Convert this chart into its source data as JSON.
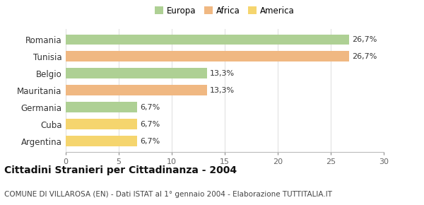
{
  "categories": [
    "Argentina",
    "Cuba",
    "Germania",
    "Mauritania",
    "Belgio",
    "Tunisia",
    "Romania"
  ],
  "values": [
    6.7,
    6.7,
    6.7,
    13.3,
    13.3,
    26.7,
    26.7
  ],
  "colors": [
    "#f5d56e",
    "#f5d56e",
    "#aed094",
    "#f0b882",
    "#aed094",
    "#f0b882",
    "#aed094"
  ],
  "labels": [
    "6,7%",
    "6,7%",
    "6,7%",
    "13,3%",
    "13,3%",
    "26,7%",
    "26,7%"
  ],
  "legend": {
    "Europa": "#aed094",
    "Africa": "#f0b882",
    "America": "#f5d56e"
  },
  "xlim": [
    0,
    30
  ],
  "xticks": [
    0,
    5,
    10,
    15,
    20,
    25,
    30
  ],
  "title": "Cittadini Stranieri per Cittadinanza - 2004",
  "subtitle": "COMUNE DI VILLAROSA (EN) - Dati ISTAT al 1° gennaio 2004 - Elaborazione TUTTITALIA.IT",
  "bg_color": "#ffffff",
  "bar_height": 0.6,
  "label_fontsize": 8.0,
  "title_fontsize": 10.0,
  "subtitle_fontsize": 7.5,
  "ytick_fontsize": 8.5,
  "xtick_fontsize": 8.0,
  "grid_color": "#dddddd",
  "spine_color": "#bbbbbb"
}
